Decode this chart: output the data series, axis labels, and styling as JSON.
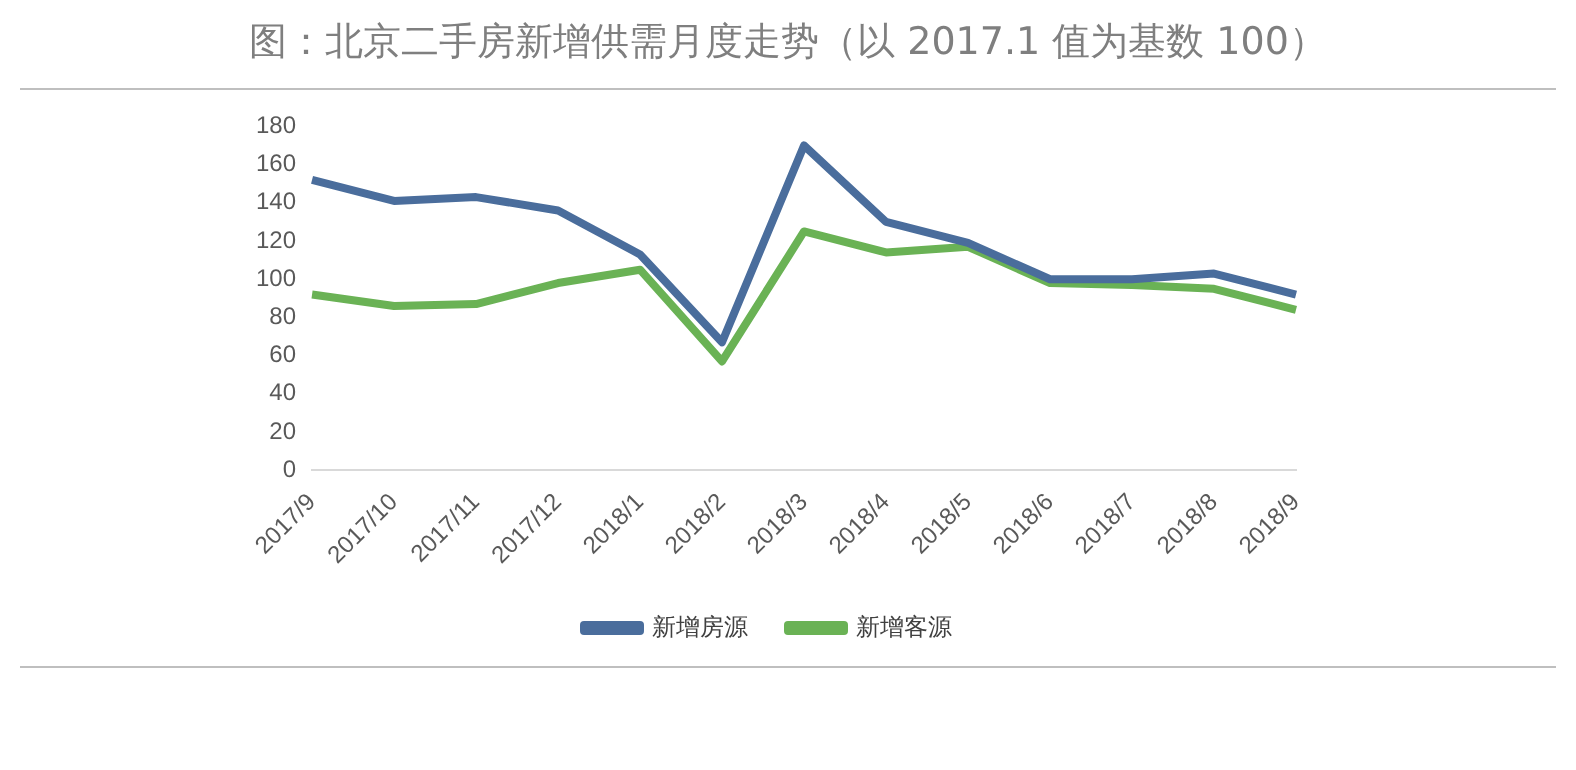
{
  "chart_data": {
    "type": "line",
    "title": "图：北京二手房新增供需月度走势（以 2017.1 值为基数 100）",
    "categories": [
      "2017/9",
      "2017/10",
      "2017/11",
      "2017/12",
      "2018/1",
      "2018/2",
      "2018/3",
      "2018/4",
      "2018/5",
      "2018/6",
      "2018/7",
      "2018/8",
      "2018/9"
    ],
    "series": [
      {
        "name": "新增房源",
        "color": "#4a6d9c",
        "values": [
          152,
          141,
          143,
          136,
          113,
          67,
          170,
          130,
          119,
          100,
          100,
          103,
          92
        ]
      },
      {
        "name": "新增客源",
        "color": "#6ab255",
        "values": [
          92,
          86,
          87,
          98,
          105,
          57,
          125,
          114,
          117,
          98,
          97,
          95,
          84
        ]
      }
    ],
    "ylim": [
      0,
      180
    ],
    "yticks": [
      0,
      20,
      40,
      60,
      80,
      100,
      120,
      140,
      160,
      180
    ],
    "grid": false,
    "legend": "bottom",
    "marker": "none",
    "line_style": "solid"
  }
}
